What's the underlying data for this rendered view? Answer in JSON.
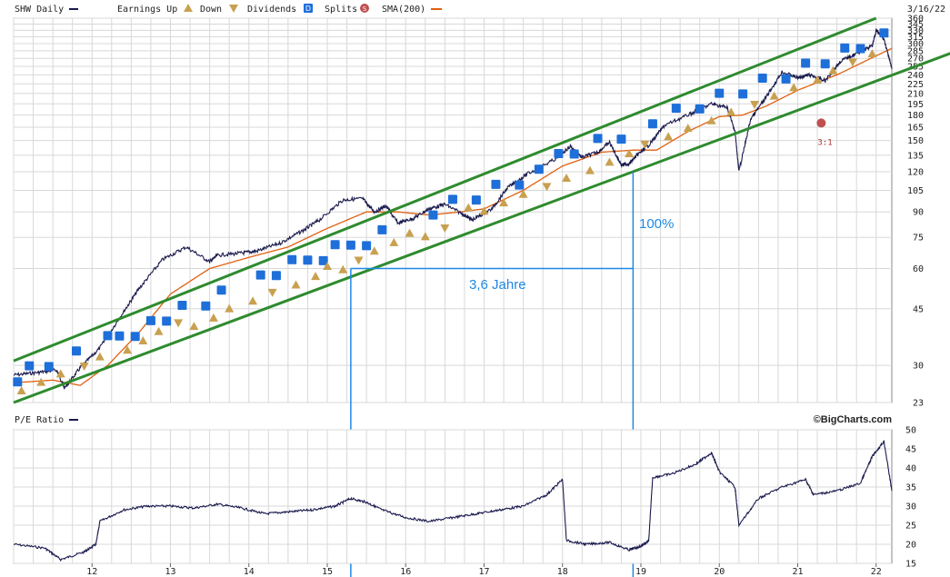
{
  "chart_data": [
    {
      "type": "line",
      "panel": "price",
      "ticker_label": "SHW Daily",
      "date_label": "3/16/22",
      "scale": "log",
      "ylim": [
        23,
        360
      ],
      "y_ticks": [
        23,
        30,
        45,
        60,
        75,
        90,
        105,
        120,
        135,
        150,
        165,
        180,
        195,
        210,
        225,
        240,
        255,
        270,
        285,
        300,
        315,
        330,
        345,
        360
      ],
      "x_ticks": [
        "12",
        "13",
        "14",
        "15",
        "16",
        "17",
        "18",
        "19",
        "20",
        "21",
        "22"
      ],
      "grid": true,
      "legend": [
        {
          "label": "SHW Daily",
          "kind": "line",
          "color": "#1a1a4e"
        },
        {
          "label": "Earnings Up",
          "kind": "earnings-up-icon",
          "color": "#c8a050"
        },
        {
          "label": "Down",
          "kind": "earnings-down-icon",
          "color": "#c8a050"
        },
        {
          "label": "Dividends",
          "kind": "dividend-icon",
          "color": "#1e6fd9"
        },
        {
          "label": "Splits",
          "kind": "split-icon",
          "color": "#c05050"
        },
        {
          "label": "SMA(200)",
          "kind": "line",
          "color": "#e06010"
        }
      ],
      "series": [
        {
          "name": "SHW Daily",
          "color": "#1a1a4e",
          "x": [
            2011.0,
            2011.3,
            2011.55,
            2011.65,
            2011.85,
            2012.1,
            2012.4,
            2012.6,
            2012.9,
            2013.2,
            2013.5,
            2013.6,
            2013.9,
            2014.1,
            2014.4,
            2014.7,
            2014.9,
            2015.2,
            2015.45,
            2015.6,
            2015.75,
            2015.9,
            2016.1,
            2016.3,
            2016.5,
            2016.75,
            2016.85,
            2017.1,
            2017.3,
            2017.55,
            2017.9,
            2018.1,
            2018.25,
            2018.45,
            2018.6,
            2018.75,
            2018.85,
            2018.95,
            2019.1,
            2019.3,
            2019.6,
            2019.9,
            2020.1,
            2020.2,
            2020.25,
            2020.4,
            2020.6,
            2020.8,
            2021.0,
            2021.15,
            2021.35,
            2021.55,
            2021.75,
            2021.95,
            2022.0,
            2022.1,
            2022.2
          ],
          "y": [
            28.0,
            28.5,
            29.0,
            25.5,
            29.5,
            34.0,
            44.0,
            52.0,
            64.0,
            70.0,
            63.0,
            66.0,
            67.0,
            68.0,
            72.0,
            79.0,
            85.0,
            98.0,
            99.0,
            90.0,
            94.0,
            83.0,
            86.0,
            92.0,
            95.0,
            88.0,
            85.0,
            92.0,
            107.0,
            118.0,
            131.0,
            144.0,
            133.0,
            138.0,
            148.0,
            126.0,
            127.0,
            135.0,
            145.0,
            167.0,
            180.0,
            195.0,
            190.0,
            160.0,
            120.0,
            175.0,
            205.0,
            245.0,
            235.0,
            240.0,
            230.0,
            265.0,
            280.0,
            295.0,
            330.0,
            310.0,
            250.0
          ]
        },
        {
          "name": "SMA(200)",
          "color": "#e06010",
          "x": [
            2011.0,
            2011.5,
            2011.85,
            2012.2,
            2012.6,
            2013.0,
            2013.5,
            2014.0,
            2014.5,
            2015.0,
            2015.5,
            2015.9,
            2016.3,
            2016.7,
            2017.0,
            2017.5,
            2018.0,
            2018.5,
            2018.9,
            2019.2,
            2019.6,
            2020.0,
            2020.3,
            2020.6,
            2021.0,
            2021.5,
            2022.0,
            2022.2
          ],
          "y": [
            26.5,
            27.0,
            26.0,
            30.0,
            38.0,
            50.0,
            60.0,
            65.0,
            70.0,
            80.0,
            90.0,
            90.0,
            88.0,
            90.0,
            92.0,
            105.0,
            125.0,
            138.0,
            140.0,
            140.0,
            160.0,
            178.0,
            180.0,
            192.0,
            215.0,
            240.0,
            275.0,
            290.0
          ]
        }
      ],
      "channel_lines": [
        {
          "name": "upper channel",
          "color": "#2e8b2e",
          "x": [
            2011.0,
            2022.0
          ],
          "y": [
            31.0,
            360.0
          ]
        },
        {
          "name": "lower channel",
          "color": "#2e8b2e",
          "x": [
            2011.0,
            2022.95
          ],
          "y": [
            23.0,
            280.0
          ]
        }
      ],
      "annotations": [
        {
          "text": "100%",
          "x": 2019.05,
          "y": 88
        },
        {
          "text": "3,6 Jahre",
          "x": 2016.9,
          "y": 56
        },
        {
          "text": "3:1",
          "x": 2021.3,
          "y": 148
        }
      ],
      "measure_lines": {
        "color": "#1e88e5",
        "x_start": 2015.3,
        "x_end": 2018.9,
        "y_start": 60,
        "y_end": 120
      },
      "dividend_marks_x": [
        2011.05,
        2011.2,
        2011.45,
        2011.8,
        2012.2,
        2012.35,
        2012.55,
        2012.75,
        2012.95,
        2013.15,
        2013.45,
        2013.65,
        2014.15,
        2014.35,
        2014.55,
        2014.75,
        2014.95,
        2015.1,
        2015.3,
        2015.5,
        2015.7,
        2016.35,
        2016.6,
        2016.9,
        2017.15,
        2017.45,
        2017.7,
        2017.95,
        2018.15,
        2018.45,
        2018.75,
        2019.15,
        2019.45,
        2019.75,
        2020.0,
        2020.3,
        2020.55,
        2020.85,
        2021.1,
        2021.35,
        2021.6,
        2021.8,
        2022.1
      ],
      "earnings_marks_x": [
        2011.1,
        2011.35,
        2011.6,
        2011.9,
        2012.1,
        2012.45,
        2012.65,
        2012.85,
        2013.1,
        2013.3,
        2013.55,
        2013.75,
        2014.05,
        2014.3,
        2014.6,
        2014.85,
        2015.0,
        2015.2,
        2015.4,
        2015.6,
        2015.85,
        2016.05,
        2016.25,
        2016.5,
        2016.8,
        2017.0,
        2017.25,
        2017.5,
        2017.8,
        2018.05,
        2018.35,
        2018.6,
        2018.85,
        2019.05,
        2019.35,
        2019.6,
        2019.9,
        2020.15,
        2020.45,
        2020.7,
        2020.95,
        2021.25,
        2021.45,
        2021.7,
        2021.95
      ],
      "split_mark_x": 2021.3
    },
    {
      "type": "line",
      "panel": "pe",
      "label": "P/E Ratio",
      "brand": "©BigCharts.com",
      "ylim": [
        15,
        50
      ],
      "y_ticks": [
        15,
        20,
        25,
        30,
        35,
        40,
        45,
        50
      ],
      "grid": true,
      "series": [
        {
          "name": "P/E Ratio",
          "color": "#1a1a4e",
          "x": [
            2011.0,
            2011.4,
            2011.6,
            2011.9,
            2012.05,
            2012.1,
            2012.4,
            2012.7,
            2013.0,
            2013.3,
            2013.6,
            2013.9,
            2014.2,
            2014.5,
            2014.8,
            2015.1,
            2015.3,
            2015.5,
            2015.7,
            2016.0,
            2016.3,
            2016.6,
            2016.9,
            2017.2,
            2017.5,
            2017.8,
            2018.0,
            2018.05,
            2018.3,
            2018.6,
            2018.85,
            2019.0,
            2019.1,
            2019.15,
            2019.4,
            2019.7,
            2019.9,
            2020.0,
            2020.2,
            2020.25,
            2020.5,
            2020.8,
            2021.1,
            2021.2,
            2021.5,
            2021.8,
            2021.95,
            2022.1,
            2022.2
          ],
          "y": [
            20.0,
            19.0,
            16.0,
            18.0,
            20.0,
            26.0,
            29.0,
            30.0,
            30.0,
            29.5,
            30.5,
            29.5,
            28.0,
            28.5,
            29.0,
            30.0,
            32.0,
            31.0,
            29.0,
            27.0,
            26.0,
            27.0,
            28.0,
            29.0,
            30.0,
            33.0,
            37.0,
            21.0,
            20.0,
            20.5,
            18.5,
            19.5,
            21.0,
            37.5,
            38.5,
            41.0,
            44.0,
            39.0,
            35.0,
            25.0,
            32.0,
            35.0,
            37.0,
            33.0,
            34.0,
            36.0,
            43.0,
            47.0,
            34.0
          ]
        }
      ]
    }
  ]
}
